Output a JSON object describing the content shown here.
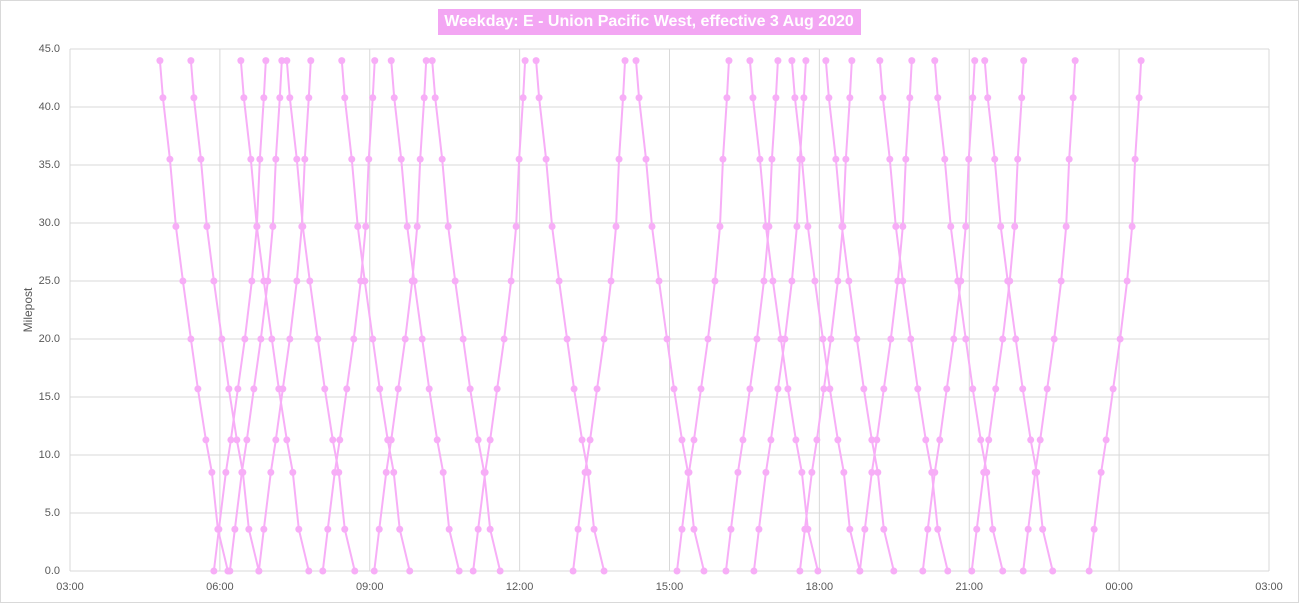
{
  "chart_data": {
    "type": "line",
    "title": "Weekday: E - Union Pacific West, effective 3 Aug 2020",
    "y_label": "Milepost",
    "color": "#f7aef7",
    "grid": true,
    "xlim": [
      3,
      27
    ],
    "xticks": [
      {
        "value": 3,
        "label": "03:00"
      },
      {
        "value": 6,
        "label": "06:00"
      },
      {
        "value": 9,
        "label": "09:00"
      },
      {
        "value": 12,
        "label": "12:00"
      },
      {
        "value": 15,
        "label": "15:00"
      },
      {
        "value": 18,
        "label": "18:00"
      },
      {
        "value": 21,
        "label": "21:00"
      },
      {
        "value": 24,
        "label": "00:00"
      },
      {
        "value": 27,
        "label": "03:00"
      }
    ],
    "ylim": [
      0,
      45
    ],
    "yticks": [
      {
        "value": 0,
        "label": "0.0"
      },
      {
        "value": 5,
        "label": "5.0"
      },
      {
        "value": 10,
        "label": "10.0"
      },
      {
        "value": 15,
        "label": "15.0"
      },
      {
        "value": 20,
        "label": "20.0"
      },
      {
        "value": 25,
        "label": "25.0"
      },
      {
        "value": 30,
        "label": "30.0"
      },
      {
        "value": 35,
        "label": "35.0"
      },
      {
        "value": 40,
        "label": "40.0"
      },
      {
        "value": 45,
        "label": "45.0"
      }
    ],
    "mileposts": [
      44,
      40.8,
      35.5,
      29.7,
      25,
      20,
      15.7,
      11.3,
      8.5,
      3.6,
      0
    ],
    "series": [
      {
        "x": [
          4.8,
          4.86,
          5.0,
          5.12,
          5.26,
          5.42,
          5.56,
          5.72,
          5.84,
          5.96,
          6.16
        ]
      },
      {
        "x": [
          5.42,
          5.48,
          5.62,
          5.74,
          5.88,
          6.04,
          6.18,
          6.34,
          6.46,
          6.58,
          6.78
        ]
      },
      {
        "x": [
          6.42,
          6.48,
          6.62,
          6.74,
          6.88,
          7.04,
          7.18,
          7.34,
          7.46,
          7.58,
          7.78
        ]
      },
      {
        "x": [
          7.34,
          7.4,
          7.54,
          7.66,
          7.8,
          7.96,
          8.1,
          8.26,
          8.38,
          8.5,
          8.7
        ]
      },
      {
        "x": [
          8.44,
          8.5,
          8.64,
          8.76,
          8.9,
          9.06,
          9.2,
          9.36,
          9.48,
          9.6,
          9.8
        ]
      },
      {
        "x": [
          9.43,
          9.49,
          9.63,
          9.75,
          9.89,
          10.05,
          10.19,
          10.35,
          10.47,
          10.59,
          10.79
        ]
      },
      {
        "x": [
          10.25,
          10.31,
          10.45,
          10.57,
          10.71,
          10.87,
          11.01,
          11.17,
          11.29,
          11.41,
          11.61
        ]
      },
      {
        "x": [
          12.33,
          12.39,
          12.53,
          12.65,
          12.79,
          12.95,
          13.09,
          13.25,
          13.37,
          13.49,
          13.69
        ]
      },
      {
        "x": [
          14.33,
          14.39,
          14.53,
          14.65,
          14.79,
          14.95,
          15.09,
          15.25,
          15.37,
          15.49,
          15.69
        ]
      },
      {
        "x": [
          16.61,
          16.67,
          16.81,
          16.93,
          17.07,
          17.23,
          17.37,
          17.53,
          17.65,
          17.77,
          17.97
        ]
      },
      {
        "x": [
          17.45,
          17.51,
          17.65,
          17.77,
          17.91,
          18.07,
          18.21,
          18.37,
          18.49,
          18.61,
          18.81
        ]
      },
      {
        "x": [
          18.13,
          18.19,
          18.33,
          18.45,
          18.59,
          18.75,
          18.89,
          19.05,
          19.17,
          19.29,
          19.49
        ]
      },
      {
        "x": [
          19.21,
          19.27,
          19.41,
          19.53,
          19.67,
          19.83,
          19.97,
          20.13,
          20.25,
          20.37,
          20.57
        ]
      },
      {
        "x": [
          20.31,
          20.37,
          20.51,
          20.63,
          20.77,
          20.93,
          21.07,
          21.23,
          21.35,
          21.47,
          21.67
        ]
      },
      {
        "x": [
          21.31,
          21.37,
          21.51,
          21.63,
          21.77,
          21.93,
          22.07,
          22.23,
          22.35,
          22.47,
          22.67
        ]
      },
      {
        "x": [
          6.92,
          6.88,
          6.8,
          6.74,
          6.64,
          6.5,
          6.36,
          6.22,
          6.12,
          5.98,
          5.88
        ]
      },
      {
        "x": [
          7.24,
          7.2,
          7.12,
          7.06,
          6.96,
          6.82,
          6.68,
          6.54,
          6.44,
          6.3,
          6.2
        ]
      },
      {
        "x": [
          7.82,
          7.78,
          7.7,
          7.64,
          7.54,
          7.4,
          7.26,
          7.12,
          7.02,
          6.88,
          6.78
        ]
      },
      {
        "x": [
          9.1,
          9.06,
          8.98,
          8.92,
          8.82,
          8.68,
          8.54,
          8.4,
          8.3,
          8.16,
          8.06
        ]
      },
      {
        "x": [
          10.13,
          10.09,
          10.01,
          9.95,
          9.85,
          9.71,
          9.57,
          9.43,
          9.33,
          9.19,
          9.09
        ]
      },
      {
        "x": [
          12.11,
          12.07,
          11.99,
          11.93,
          11.83,
          11.69,
          11.55,
          11.41,
          11.31,
          11.17,
          11.07
        ]
      },
      {
        "x": [
          14.11,
          14.07,
          13.99,
          13.93,
          13.83,
          13.69,
          13.55,
          13.41,
          13.31,
          13.17,
          13.07
        ]
      },
      {
        "x": [
          16.19,
          16.15,
          16.07,
          16.01,
          15.91,
          15.77,
          15.63,
          15.49,
          15.39,
          15.25,
          15.15
        ]
      },
      {
        "x": [
          17.17,
          17.13,
          17.05,
          16.99,
          16.89,
          16.75,
          16.61,
          16.47,
          16.37,
          16.23,
          16.13
        ]
      },
      {
        "x": [
          17.73,
          17.69,
          17.61,
          17.55,
          17.45,
          17.31,
          17.17,
          17.03,
          16.93,
          16.79,
          16.69
        ]
      },
      {
        "x": [
          18.65,
          18.61,
          18.53,
          18.47,
          18.37,
          18.23,
          18.09,
          17.95,
          17.85,
          17.71,
          17.61
        ]
      },
      {
        "x": [
          19.85,
          19.81,
          19.73,
          19.67,
          19.57,
          19.43,
          19.29,
          19.15,
          19.05,
          18.91,
          18.81
        ]
      },
      {
        "x": [
          21.11,
          21.07,
          20.99,
          20.93,
          20.83,
          20.69,
          20.55,
          20.41,
          20.31,
          20.17,
          20.07
        ]
      },
      {
        "x": [
          22.09,
          22.05,
          21.97,
          21.91,
          21.81,
          21.67,
          21.53,
          21.39,
          21.29,
          21.15,
          21.05
        ]
      },
      {
        "x": [
          23.12,
          23.08,
          23.0,
          22.94,
          22.84,
          22.7,
          22.56,
          22.42,
          22.32,
          22.18,
          22.08
        ]
      },
      {
        "x": [
          24.44,
          24.4,
          24.32,
          24.26,
          24.16,
          24.02,
          23.88,
          23.74,
          23.64,
          23.5,
          23.4
        ]
      }
    ]
  }
}
